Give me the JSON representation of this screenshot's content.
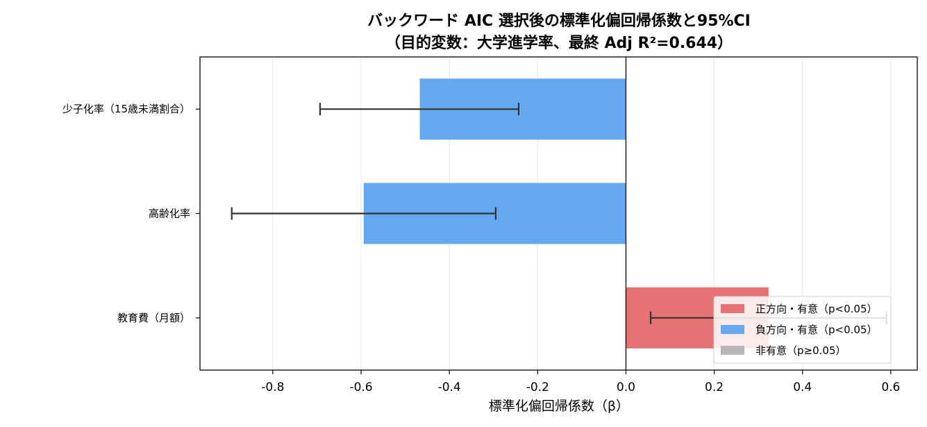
{
  "chart_data": {
    "type": "bar",
    "orientation": "horizontal",
    "title_line1": "バックワード AIC 選択後の標準化偏回帰係数と95%CI",
    "title_line2": "（目的変数：大学進学率、最終 Adj R²=0.644）",
    "xlabel": "標準化偏回帰係数（β）",
    "ylabel": "",
    "xlim": [
      -0.965,
      0.66
    ],
    "xticks": [
      -0.8,
      -0.6,
      -0.4,
      -0.2,
      0.0,
      0.2,
      0.4,
      0.6
    ],
    "xtick_labels": [
      "-0.8",
      "-0.6",
      "-0.4",
      "-0.2",
      "0.0",
      "0.2",
      "0.4",
      "0.6"
    ],
    "grid": "x",
    "zero_line": true,
    "categories": [
      "少子化率（15歳未満割合）",
      "高齢化率",
      "教育費（月額）"
    ],
    "values": [
      -0.467,
      -0.594,
      0.323
    ],
    "ci_low": [
      -0.693,
      -0.893,
      0.056
    ],
    "ci_high": [
      -0.243,
      -0.295,
      0.59
    ],
    "bar_status": [
      "negative",
      "negative",
      "positive"
    ],
    "colors": {
      "positive": "#e57373",
      "negative": "#64a8f2",
      "nonsig": "#b7b5b5",
      "errorbar": "#333333"
    },
    "legend": {
      "position": "lower right",
      "items": [
        {
          "key": "positive",
          "label": "正方向・有意（p<0.05）"
        },
        {
          "key": "negative",
          "label": "負方向・有意（p<0.05）"
        },
        {
          "key": "nonsig",
          "label": "非有意（p≥0.05）"
        }
      ]
    }
  }
}
